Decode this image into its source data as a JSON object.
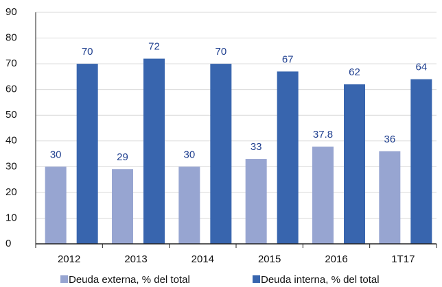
{
  "chart_data": {
    "type": "bar",
    "categories": [
      "2012",
      "2013",
      "2014",
      "2015",
      "2016",
      "1T17"
    ],
    "series": [
      {
        "name": "Deuda externa, % del total",
        "color": "#97a5d1",
        "values": [
          30,
          29,
          30,
          33,
          37.8,
          36
        ]
      },
      {
        "name": "Deuda interna, % del total",
        "color": "#3865ae",
        "values": [
          70,
          72,
          70,
          67,
          62,
          64
        ]
      }
    ],
    "ylim": [
      0,
      90
    ],
    "yticks": [
      0,
      10,
      20,
      30,
      40,
      50,
      60,
      70,
      80,
      90
    ],
    "grid": true,
    "legend": "bottom"
  }
}
